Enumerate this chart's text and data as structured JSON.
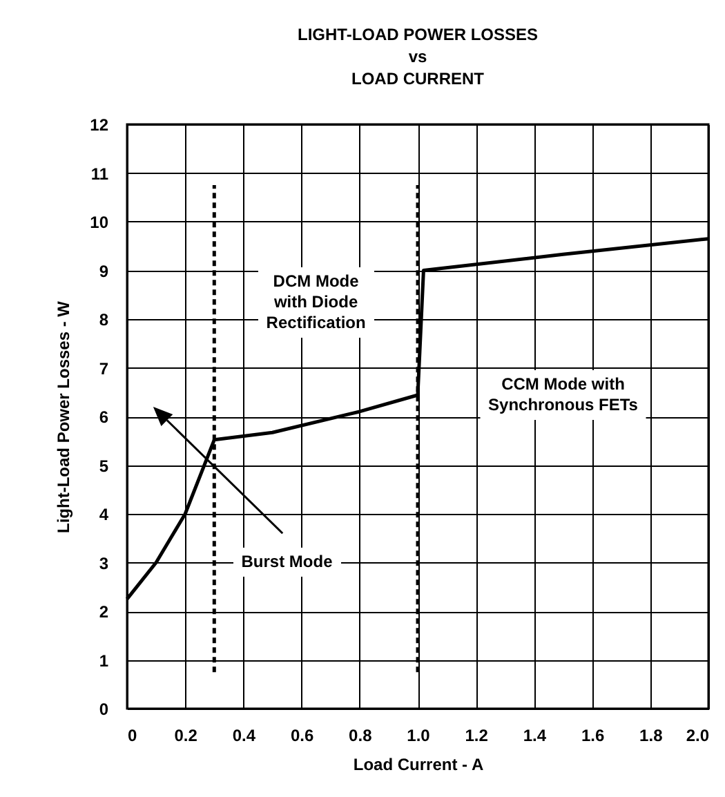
{
  "chart_data": {
    "type": "line",
    "title": "LIGHT-LOAD POWER LOSSES\nvs\nLOAD CURRENT",
    "xlabel": "Load Current - A",
    "ylabel": "Light-Load Power Losses - W",
    "xlim": [
      0,
      2
    ],
    "ylim": [
      0,
      12
    ],
    "xticks": [
      {
        "value": 0,
        "label": "0"
      },
      0.2,
      0.4,
      0.6,
      0.8,
      {
        "value": 1,
        "label": "1.0"
      },
      1.2,
      1.4,
      1.6,
      1.8,
      {
        "value": 2,
        "label": "2.0"
      }
    ],
    "yticks": [
      0,
      1,
      2,
      3,
      4,
      5,
      6,
      7,
      8,
      9,
      10,
      11,
      12
    ],
    "grid": true,
    "series": [
      {
        "color": "#000000",
        "x": [
          0,
          0.1,
          0.2,
          0.3,
          0.5,
          0.8,
          1.0,
          1.02,
          1.5,
          2.0
        ],
        "values": [
          2.25,
          3.0,
          4.0,
          5.52,
          5.67,
          6.1,
          6.44,
          9.0,
          9.33,
          9.65
        ]
      },
      {
        "color": "#000000",
        "line_style": "dashed",
        "x": [
          0.3,
          0.3
        ],
        "values": [
          0.75,
          10.75
        ]
      },
      {
        "color": "#000000",
        "line_style": "dashed",
        "x": [
          1.0,
          1.0
        ],
        "values": [
          0.75,
          10.75
        ]
      }
    ],
    "annotations": [
      "DCM Mode\nwith Diode\nRectification",
      "CCM Mode with\nSynchronous FETs",
      "Burst Mode"
    ]
  }
}
